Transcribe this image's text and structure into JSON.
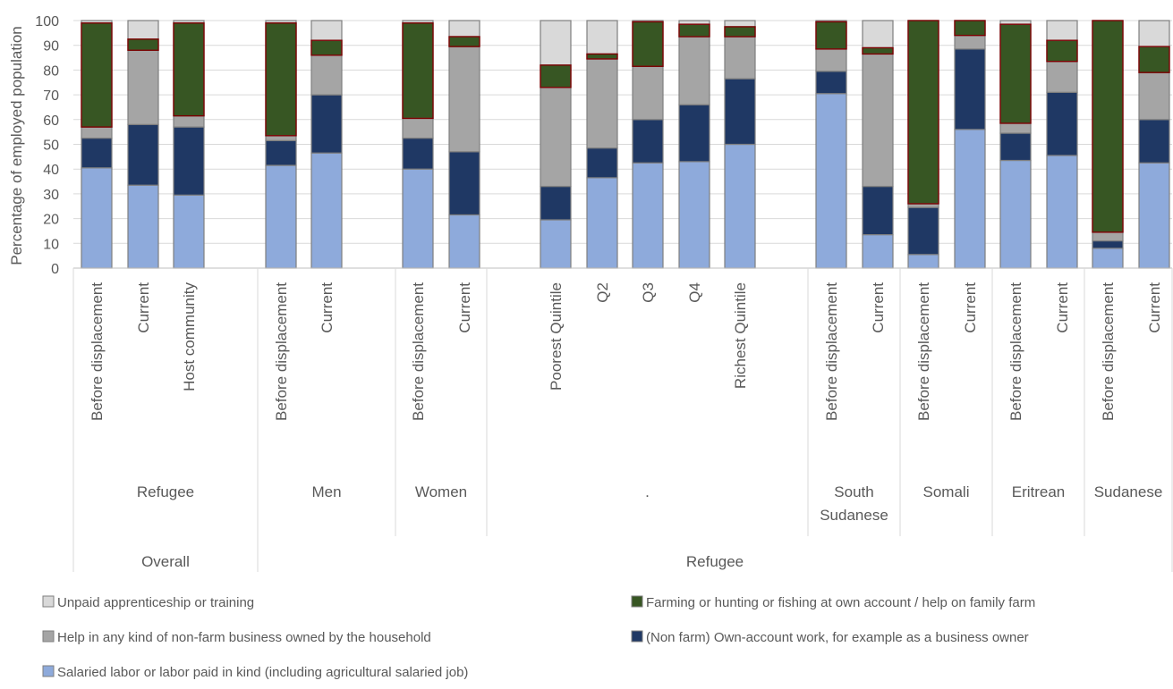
{
  "chart_data": {
    "type": "bar",
    "stacked": true,
    "ylabel": "Percentage of employed population",
    "ylim": [
      0,
      100
    ],
    "yticks": [
      0,
      10,
      20,
      30,
      40,
      50,
      60,
      70,
      80,
      90,
      100
    ],
    "categories": [
      "Before displacement",
      "Current",
      "Host community",
      "Before displacement",
      "Current",
      "Before displacement",
      "Current",
      "Poorest Quintile",
      "Q2",
      "Q3",
      "Q4",
      "Richest Quintile",
      "Before displacement",
      "Current",
      "Before displacement",
      "Current",
      "Before displacement",
      "Current",
      "Before displacement",
      "Current"
    ],
    "groups_level1": [
      {
        "label": "Refugee",
        "count": 3
      },
      {
        "label": "Men",
        "count": 2
      },
      {
        "label": "Women",
        "count": 2
      },
      {
        "label": ".",
        "count": 5
      },
      {
        "label": "South Sudanese",
        "count": 2
      },
      {
        "label": "Somali",
        "count": 2
      },
      {
        "label": "Eritrean",
        "count": 2
      },
      {
        "label": "Sudanese",
        "count": 2
      }
    ],
    "groups_level2": [
      {
        "label": "Overall",
        "count": 3
      },
      {
        "label": "Refugee",
        "count": 17
      }
    ],
    "series": [
      {
        "name": "Salaried labor or labor paid in kind (including agricultural salaried job)",
        "color": "#8eaadb",
        "values": [
          40.5,
          33.5,
          29.5,
          41.5,
          46.5,
          40,
          21.5,
          19.5,
          36.5,
          42.5,
          43,
          50,
          70.5,
          13.5,
          5.5,
          56,
          43.5,
          45.5,
          8,
          42.5
        ]
      },
      {
        "name": "(Non farm) Own-account work, for example as a business owner",
        "color": "#1f3864",
        "values": [
          12,
          24.5,
          27.5,
          10,
          23.5,
          12.5,
          25.5,
          13.5,
          12,
          17.5,
          23,
          26.5,
          9,
          19.5,
          19,
          32.5,
          11,
          25.5,
          3,
          17.5
        ]
      },
      {
        "name": "Help in any kind of non-farm business owned by the household",
        "color": "#a5a5a5",
        "values": [
          4.5,
          30,
          4.5,
          2,
          16,
          8,
          42.5,
          40,
          36,
          21.5,
          27.5,
          17,
          9,
          53.5,
          1.5,
          5.5,
          4,
          12.5,
          3.5,
          19
        ]
      },
      {
        "name": "Farming or hunting or fishing at own account / help on family farm",
        "color": "#375623",
        "values": [
          42,
          4.5,
          37.5,
          45.5,
          6,
          38.5,
          4,
          9,
          2,
          18,
          5,
          4,
          11,
          2.5,
          74,
          6,
          40,
          8.5,
          85.5,
          10.5
        ]
      },
      {
        "name": "Unpaid apprenticeship or training",
        "color": "#d9d9d9",
        "values": [
          1,
          7.5,
          1,
          1,
          8,
          1,
          6.5,
          18,
          13.5,
          0.5,
          1.5,
          2.5,
          0.5,
          11,
          0,
          0,
          1.5,
          8,
          0,
          10.5
        ]
      }
    ],
    "legend": {
      "placement": "bottom",
      "rows": [
        [
          4,
          3
        ],
        [
          2,
          1
        ],
        [
          0
        ]
      ]
    }
  }
}
